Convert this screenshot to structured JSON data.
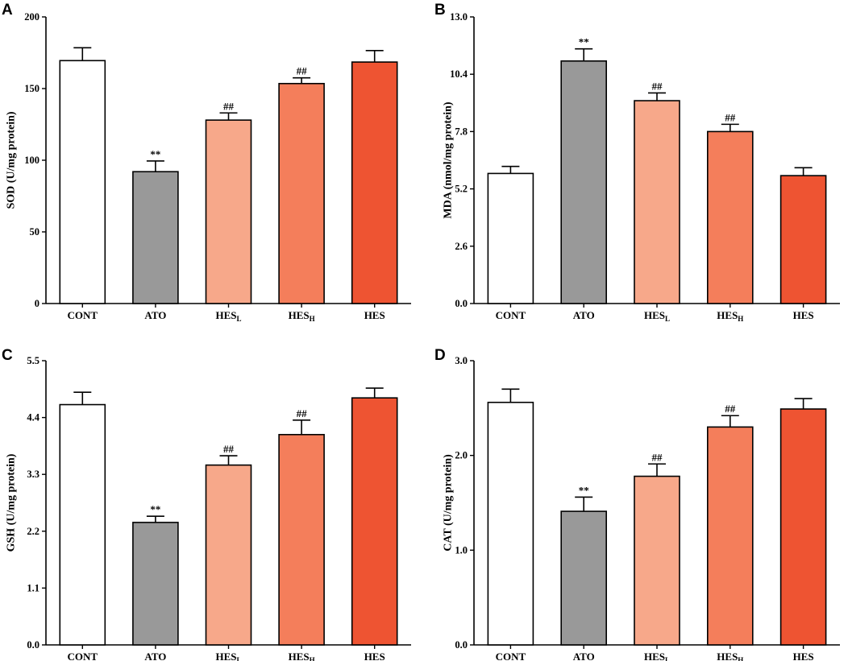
{
  "figure": {
    "bar_colors": [
      "#ffffff",
      "#999999",
      "#f7a88a",
      "#f47e5b",
      "#ee5432"
    ],
    "bar_stroke": "#000000"
  },
  "chart_data": [
    {
      "panel": "A",
      "type": "bar",
      "title": "",
      "xlabel": "",
      "ylabel": "SOD (U/mg protein)",
      "ylim": [
        0,
        200
      ],
      "yticks": [
        "0",
        "50",
        "100",
        "150",
        "200"
      ],
      "categories": [
        {
          "main": "CONT",
          "sub": ""
        },
        {
          "main": "ATO",
          "sub": ""
        },
        {
          "main": "HES",
          "sub": "L"
        },
        {
          "main": "HES",
          "sub": "H"
        },
        {
          "main": "HES",
          "sub": ""
        }
      ],
      "values": [
        169.5,
        92,
        128,
        153.5,
        168.5
      ],
      "errors": [
        9,
        7.5,
        5,
        4,
        8
      ],
      "annotations": [
        "",
        "**",
        "##",
        "##",
        ""
      ]
    },
    {
      "panel": "B",
      "type": "bar",
      "title": "",
      "xlabel": "",
      "ylabel": "MDA (nmol/mg protein)",
      "ylim": [
        0,
        13
      ],
      "yticks": [
        "0.0",
        "2.6",
        "5.2",
        "7.8",
        "10.4",
        "13.0"
      ],
      "categories": [
        {
          "main": "CONT",
          "sub": ""
        },
        {
          "main": "ATO",
          "sub": ""
        },
        {
          "main": "HES",
          "sub": "L"
        },
        {
          "main": "HES",
          "sub": "H"
        },
        {
          "main": "HES",
          "sub": ""
        }
      ],
      "values": [
        5.9,
        11.0,
        9.2,
        7.8,
        5.8
      ],
      "errors": [
        0.32,
        0.55,
        0.35,
        0.33,
        0.36
      ],
      "annotations": [
        "",
        "**",
        "##",
        "##",
        ""
      ]
    },
    {
      "panel": "C",
      "type": "bar",
      "title": "",
      "xlabel": "",
      "ylabel": "GSH (U/mg protein)",
      "ylim": [
        0,
        5.5
      ],
      "yticks": [
        "0.0",
        "1.1",
        "2.2",
        "3.3",
        "4.4",
        "5.5"
      ],
      "categories": [
        {
          "main": "CONT",
          "sub": ""
        },
        {
          "main": "ATO",
          "sub": ""
        },
        {
          "main": "HES",
          "sub": "L"
        },
        {
          "main": "HES",
          "sub": "H"
        },
        {
          "main": "HES",
          "sub": ""
        }
      ],
      "values": [
        4.65,
        2.37,
        3.48,
        4.07,
        4.78
      ],
      "errors": [
        0.24,
        0.12,
        0.18,
        0.28,
        0.19
      ],
      "annotations": [
        "",
        "**",
        "##",
        "##",
        ""
      ]
    },
    {
      "panel": "D",
      "type": "bar",
      "title": "",
      "xlabel": "",
      "ylabel": "CAT (U/mg protein)",
      "ylim": [
        0,
        3.0
      ],
      "yticks": [
        "0.0",
        "1.0",
        "2.0",
        "3.0"
      ],
      "categories": [
        {
          "main": "CONT",
          "sub": ""
        },
        {
          "main": "ATO",
          "sub": ""
        },
        {
          "main": "HES",
          "sub": "L"
        },
        {
          "main": "HES",
          "sub": "H"
        },
        {
          "main": "HES",
          "sub": ""
        }
      ],
      "values": [
        2.56,
        1.41,
        1.78,
        2.3,
        2.49
      ],
      "errors": [
        0.14,
        0.15,
        0.13,
        0.12,
        0.11
      ],
      "annotations": [
        "",
        "**",
        "##",
        "##",
        ""
      ]
    }
  ]
}
